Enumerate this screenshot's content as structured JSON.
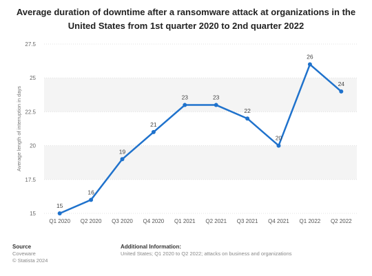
{
  "title": "Average duration of downtime after a ransomware attack at organizations in the United States from 1st quarter 2020 to 2nd quarter 2022",
  "colors": {
    "line": "#1f72cc",
    "grid": "#e1e1e1",
    "band": "#f4f4f4",
    "text": "#444444"
  },
  "chart_data": {
    "type": "line",
    "categories": [
      "Q1 2020",
      "Q2 2020",
      "Q3 2020",
      "Q4 2020",
      "Q1 2021",
      "Q2 2021",
      "Q3 2021",
      "Q4 2021",
      "Q1 2022",
      "Q2 2022"
    ],
    "values": [
      15,
      16,
      19,
      21,
      23,
      23,
      22,
      20,
      26,
      24
    ],
    "data_labels": [
      "15",
      "16",
      "19",
      "21",
      "23",
      "23",
      "22",
      "20",
      "26",
      "24"
    ],
    "ylabel": "Average length of interruption in days",
    "xlabel": "",
    "ylim": [
      15,
      27.5
    ],
    "yticks": [
      15,
      17.5,
      20,
      22.5,
      25,
      27.5
    ],
    "ytick_labels": [
      "15",
      "17.5",
      "20",
      "22.5",
      "25",
      "27.5"
    ],
    "grid": true,
    "legend": "none"
  },
  "footer": {
    "source_heading": "Source",
    "source_lines": [
      "Coveware",
      "© Statista 2024"
    ],
    "info_heading": "Additional Information:",
    "info_text": "United States; Q1 2020 to Q2 2022; attacks on business and organizations"
  }
}
